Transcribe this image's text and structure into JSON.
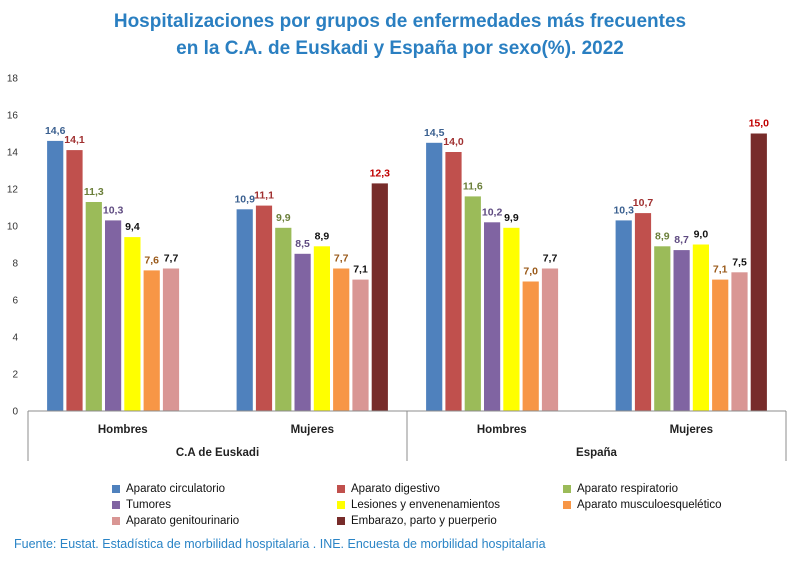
{
  "chart_data": {
    "type": "bar",
    "title": [
      "Hospitalizaciones por grupos de enfermedades más frecuentes",
      "en la C.A. de Euskadi y España por sexo(%). 2022"
    ],
    "ylim": [
      0,
      18
    ],
    "yticks": [
      0,
      2,
      4,
      6,
      8,
      10,
      12,
      14,
      16,
      18
    ],
    "groups": [
      {
        "region": "C.A de Euskadi",
        "categories": [
          {
            "label": "Hombres",
            "values": [
              14.6,
              14.1,
              11.3,
              10.3,
              9.4,
              7.6,
              7.7,
              null
            ],
            "labels": [
              "14,6",
              "14,1",
              "11,3",
              "10,3",
              "9,4",
              "7,6",
              "7,7",
              ""
            ]
          },
          {
            "label": "Mujeres",
            "values": [
              10.9,
              11.1,
              9.9,
              8.5,
              8.9,
              7.7,
              7.1,
              12.3
            ],
            "labels": [
              "10,9",
              "11,1",
              "9,9",
              "8,5",
              "8,9",
              "7,7",
              "7,1",
              "12,3"
            ]
          }
        ]
      },
      {
        "region": "España",
        "categories": [
          {
            "label": "Hombres",
            "values": [
              14.5,
              14.0,
              11.6,
              10.2,
              9.9,
              7.0,
              7.7,
              null
            ],
            "labels": [
              "14,5",
              "14,0",
              "11,6",
              "10,2",
              "9,9",
              "7,0",
              "7,7",
              ""
            ]
          },
          {
            "label": "Mujeres",
            "values": [
              10.3,
              10.7,
              8.9,
              8.7,
              9.0,
              7.1,
              7.5,
              15.0
            ],
            "labels": [
              "10,3",
              "10,7",
              "8,9",
              "8,7",
              "9,0",
              "7,1",
              "7,5",
              "15,0"
            ]
          }
        ]
      }
    ],
    "series": [
      {
        "name": "Aparato circulatorio",
        "color": "#4f81bd",
        "label_color": "#3a5f8f"
      },
      {
        "name": "Aparato digestivo",
        "color": "#c0504d",
        "label_color": "#a03030"
      },
      {
        "name": "Aparato respiratorio",
        "color": "#9bbb59",
        "label_color": "#6b7f3a"
      },
      {
        "name": "Tumores",
        "color": "#8064a2",
        "label_color": "#5e4a80"
      },
      {
        "name": "Lesiones y envenenamientos",
        "color": "#ffff00",
        "label_color": "#111111"
      },
      {
        "name": "Aparato musculoesquelético",
        "color": "#f79646",
        "label_color": "#9a5a1a"
      },
      {
        "name": "Aparato genitourinario",
        "color": "#d99694",
        "label_color": "#111111"
      },
      {
        "name": "Embarazo, parto y puerperio",
        "color": "#772c2a",
        "label_color": "#c00000"
      }
    ]
  },
  "source": "Fuente: Eustat. Estadística de morbilidad hospitalaria . INE. Encuesta de morbilidad hospitalaria"
}
